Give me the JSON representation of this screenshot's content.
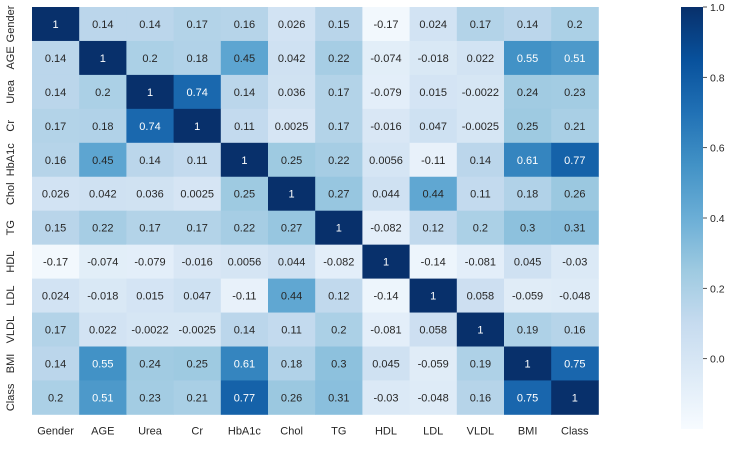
{
  "chart_data": {
    "type": "heatmap",
    "title": "",
    "xlabel": "",
    "ylabel": "",
    "colormap": "Blues",
    "value_range": [
      -0.2,
      1.0
    ],
    "x_categories": [
      "Gender",
      "AGE",
      "Urea",
      "Cr",
      "HbA1c",
      "Chol",
      "TG",
      "HDL",
      "LDL",
      "VLDL",
      "BMI",
      "Class"
    ],
    "y_categories": [
      "Gender",
      "AGE",
      "Urea",
      "Cr",
      "HbA1c",
      "Chol",
      "TG",
      "HDL",
      "LDL",
      "VLDL",
      "BMI",
      "Class"
    ],
    "values": [
      [
        1,
        0.14,
        0.14,
        0.17,
        0.16,
        0.026,
        0.15,
        -0.17,
        0.024,
        0.17,
        0.14,
        0.2
      ],
      [
        0.14,
        1,
        0.2,
        0.18,
        0.45,
        0.042,
        0.22,
        -0.074,
        -0.018,
        0.022,
        0.55,
        0.51
      ],
      [
        0.14,
        0.2,
        1,
        0.74,
        0.14,
        0.036,
        0.17,
        -0.079,
        0.015,
        -0.0022,
        0.24,
        0.23
      ],
      [
        0.17,
        0.18,
        0.74,
        1,
        0.11,
        0.0025,
        0.17,
        -0.016,
        0.047,
        -0.0025,
        0.25,
        0.21
      ],
      [
        0.16,
        0.45,
        0.14,
        0.11,
        1,
        0.25,
        0.22,
        0.0056,
        -0.11,
        0.14,
        0.61,
        0.77
      ],
      [
        0.026,
        0.042,
        0.036,
        0.0025,
        0.25,
        1,
        0.27,
        0.044,
        0.44,
        0.11,
        0.18,
        0.26
      ],
      [
        0.15,
        0.22,
        0.17,
        0.17,
        0.22,
        0.27,
        1,
        -0.082,
        0.12,
        0.2,
        0.3,
        0.31
      ],
      [
        -0.17,
        -0.074,
        -0.079,
        -0.016,
        0.0056,
        0.044,
        -0.082,
        1,
        -0.14,
        -0.081,
        0.045,
        -0.03
      ],
      [
        0.024,
        -0.018,
        0.015,
        0.047,
        -0.11,
        0.44,
        0.12,
        -0.14,
        1,
        0.058,
        -0.059,
        -0.048
      ],
      [
        0.17,
        0.022,
        -0.0022,
        -0.0025,
        0.14,
        0.11,
        0.2,
        -0.081,
        0.058,
        1,
        0.19,
        0.16
      ],
      [
        0.14,
        0.55,
        0.24,
        0.25,
        0.61,
        0.18,
        0.3,
        0.045,
        -0.059,
        0.19,
        1,
        0.75
      ],
      [
        0.2,
        0.51,
        0.23,
        0.21,
        0.77,
        0.26,
        0.31,
        -0.03,
        -0.048,
        0.16,
        0.75,
        1
      ]
    ],
    "colorbar": {
      "ticks": [
        0.0,
        0.2,
        0.4,
        0.6,
        0.8,
        1.0
      ],
      "tick_labels": [
        "0.0",
        "0.2",
        "0.4",
        "0.6",
        "0.8",
        "1.0"
      ]
    },
    "annotation_colors": {
      "light_text": "#ffffff",
      "dark_text": "#262626"
    }
  }
}
